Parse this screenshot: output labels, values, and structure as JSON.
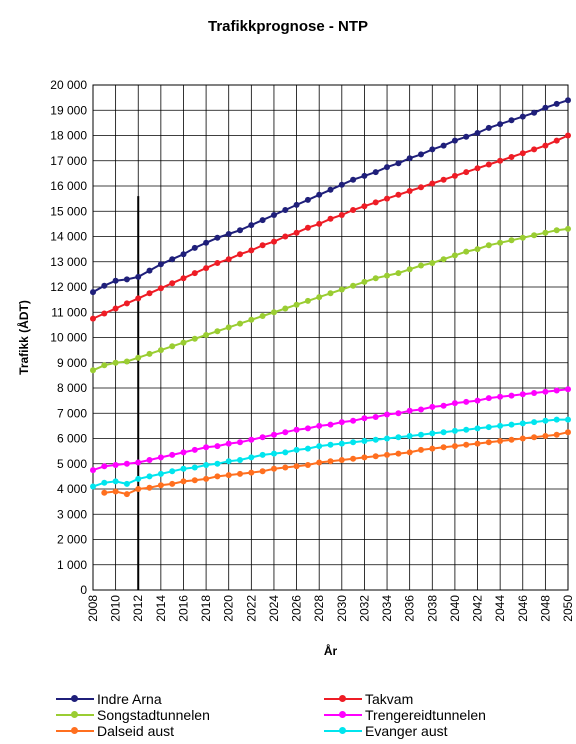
{
  "chart_data": {
    "type": "line",
    "title": "Trafikkprognose - NTP",
    "xlabel": "År",
    "ylabel": "Trafikk (ÅDT)",
    "xlim": [
      2008,
      2050
    ],
    "ylim": [
      0,
      20000
    ],
    "x_ticks": [
      "2008",
      "2010",
      "2012",
      "2014",
      "2016",
      "2018",
      "2020",
      "2022",
      "2024",
      "2026",
      "2028",
      "2030",
      "2032",
      "2034",
      "2036",
      "2038",
      "2040",
      "2042",
      "2044",
      "2046",
      "2048",
      "2050"
    ],
    "y_ticks": [
      "0",
      "1 000",
      "2 000",
      "3 000",
      "4 000",
      "5 000",
      "6 000",
      "7 000",
      "8 000",
      "9 000",
      "10 000",
      "11 000",
      "12 000",
      "13 000",
      "14 000",
      "15 000",
      "16 000",
      "17 000",
      "18 000",
      "19 000",
      "20 000"
    ],
    "grid": true,
    "legend_position": "bottom",
    "vertical_marker_x": 2012,
    "vertical_marker_top": 15600,
    "series": [
      {
        "name": "Indre Arna",
        "color": "#1f1f7a",
        "x_start": 2008,
        "values": [
          11800,
          12050,
          12250,
          12300,
          12400,
          12650,
          12900,
          13100,
          13300,
          13550,
          13750,
          13950,
          14100,
          14250,
          14450,
          14650,
          14850,
          15050,
          15250,
          15450,
          15650,
          15850,
          16050,
          16250,
          16400,
          16550,
          16750,
          16900,
          17100,
          17250,
          17450,
          17600,
          17800,
          17950,
          18100,
          18300,
          18450,
          18600,
          18750,
          18900,
          19100,
          19250,
          19400
        ]
      },
      {
        "name": "Takvam",
        "color": "#ee1c25",
        "x_start": 2008,
        "values": [
          10750,
          10950,
          11150,
          11350,
          11550,
          11750,
          11950,
          12150,
          12350,
          12550,
          12750,
          12950,
          13100,
          13300,
          13450,
          13650,
          13800,
          14000,
          14150,
          14350,
          14500,
          14700,
          14850,
          15050,
          15200,
          15350,
          15500,
          15650,
          15800,
          15950,
          16100,
          16250,
          16400,
          16550,
          16700,
          16850,
          17000,
          17150,
          17300,
          17450,
          17600,
          17800,
          18000
        ]
      },
      {
        "name": "Songstadtunnelen",
        "color": "#9acd32",
        "x_start": 2008,
        "values": [
          8700,
          8900,
          9000,
          9050,
          9200,
          9350,
          9500,
          9650,
          9800,
          9950,
          10100,
          10250,
          10400,
          10550,
          10700,
          10850,
          11000,
          11150,
          11300,
          11450,
          11600,
          11750,
          11900,
          12050,
          12200,
          12350,
          12450,
          12550,
          12700,
          12850,
          12950,
          13100,
          13250,
          13400,
          13500,
          13650,
          13750,
          13850,
          13950,
          14050,
          14150,
          14250,
          14300
        ]
      },
      {
        "name": "Trengereidtunnelen",
        "color": "#ff00ff",
        "x_start": 2008,
        "values": [
          4750,
          4900,
          4950,
          5000,
          5050,
          5150,
          5250,
          5350,
          5450,
          5550,
          5650,
          5700,
          5800,
          5850,
          5950,
          6050,
          6150,
          6250,
          6350,
          6400,
          6500,
          6550,
          6650,
          6700,
          6800,
          6850,
          6950,
          7000,
          7100,
          7150,
          7250,
          7300,
          7400,
          7450,
          7500,
          7600,
          7650,
          7700,
          7750,
          7800,
          7850,
          7900,
          7950
        ]
      },
      {
        "name": "Dalseid aust",
        "color": "#ff6f1f",
        "x_start": 2009,
        "values": [
          3850,
          3900,
          3800,
          4000,
          4050,
          4150,
          4200,
          4300,
          4350,
          4400,
          4500,
          4550,
          4600,
          4650,
          4700,
          4800,
          4850,
          4900,
          4950,
          5050,
          5100,
          5150,
          5200,
          5250,
          5300,
          5350,
          5400,
          5450,
          5550,
          5600,
          5650,
          5700,
          5750,
          5800,
          5850,
          5900,
          5950,
          6000,
          6050,
          6100,
          6150,
          6250
        ]
      },
      {
        "name": "Evanger aust",
        "color": "#00e5ee",
        "x_start": 2008,
        "values": [
          4100,
          4250,
          4300,
          4200,
          4400,
          4500,
          4600,
          4700,
          4800,
          4850,
          4950,
          5000,
          5100,
          5150,
          5250,
          5350,
          5400,
          5450,
          5550,
          5600,
          5700,
          5750,
          5800,
          5850,
          5900,
          5950,
          6000,
          6050,
          6100,
          6150,
          6200,
          6250,
          6300,
          6350,
          6400,
          6450,
          6500,
          6550,
          6600,
          6650,
          6700,
          6750,
          6750
        ]
      }
    ]
  }
}
